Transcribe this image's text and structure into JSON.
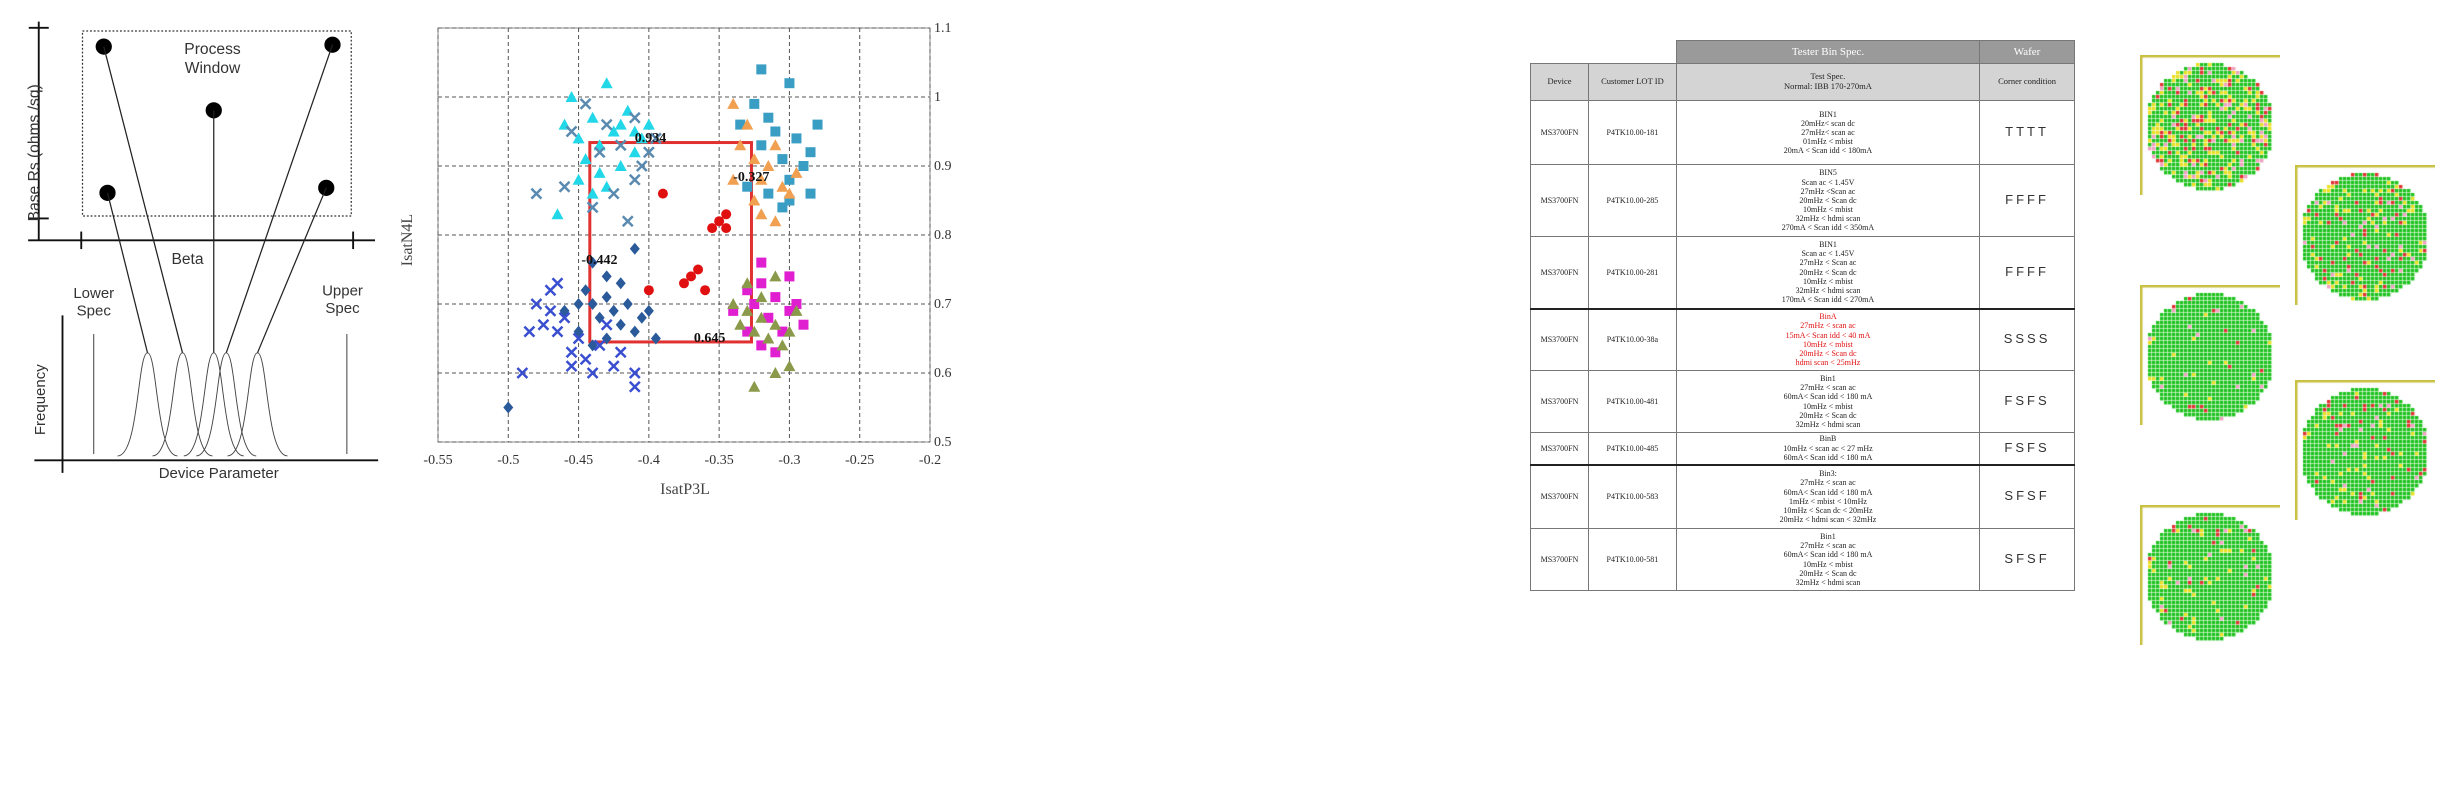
{
  "panel1": {
    "process_window": "Process Window",
    "ylabel": "Base Rs (ohms /sq)",
    "xlabel": "Beta",
    "lower_spec": "Lower Spec",
    "upper_spec": "Upper Spec",
    "freq_label": "Frequency",
    "device_param": "Device Parameter"
  },
  "chart_data": {
    "type": "scatter",
    "xlabel": "IsatP3L",
    "ylabel": "IsatN4L",
    "xlim": [
      -0.55,
      -0.2
    ],
    "ylim": [
      0.5,
      1.1
    ],
    "xticks": [
      "-0.55",
      "-0.5",
      "-0.45",
      "-0.4",
      "-0.35",
      "-0.3",
      "-0.25",
      "-0.2"
    ],
    "yticks": [
      "1.1",
      "1",
      "0.9",
      "0.8",
      "0.7",
      "0.6",
      "0.5"
    ],
    "grid": true,
    "box": {
      "x0": -0.442,
      "x1": -0.327,
      "y0": 0.645,
      "y1": 0.934,
      "color": "#e03030"
    },
    "annotations": [
      {
        "text": "0.934",
        "x": -0.41,
        "y": 0.935
      },
      {
        "text": "-0.327",
        "x": -0.34,
        "y": 0.878
      },
      {
        "text": "-0.442",
        "x": -0.448,
        "y": 0.758
      },
      {
        "text": "0.645",
        "x": -0.368,
        "y": 0.645
      }
    ],
    "series": [
      {
        "marker": "triangle",
        "color": "#22d8e8",
        "points": [
          [
            -0.46,
            0.96
          ],
          [
            -0.455,
            1.0
          ],
          [
            -0.45,
            0.94
          ],
          [
            -0.445,
            0.91
          ],
          [
            -0.44,
            0.97
          ],
          [
            -0.435,
            0.93
          ],
          [
            -0.43,
            1.02
          ],
          [
            -0.425,
            0.95
          ],
          [
            -0.42,
            0.9
          ],
          [
            -0.415,
            0.98
          ],
          [
            -0.41,
            0.92
          ],
          [
            -0.405,
            0.94
          ],
          [
            -0.4,
            0.96
          ],
          [
            -0.45,
            0.88
          ],
          [
            -0.44,
            0.86
          ],
          [
            -0.465,
            0.83
          ],
          [
            -0.435,
            0.89
          ],
          [
            -0.43,
            0.87
          ],
          [
            -0.42,
            0.96
          ],
          [
            -0.41,
            0.95
          ]
        ]
      },
      {
        "marker": "x",
        "color": "#5a8ab0",
        "points": [
          [
            -0.455,
            0.95
          ],
          [
            -0.445,
            0.99
          ],
          [
            -0.435,
            0.92
          ],
          [
            -0.43,
            0.96
          ],
          [
            -0.42,
            0.93
          ],
          [
            -0.41,
            0.97
          ],
          [
            -0.405,
            0.9
          ],
          [
            -0.4,
            0.92
          ],
          [
            -0.395,
            0.94
          ],
          [
            -0.425,
            0.86
          ],
          [
            -0.415,
            0.82
          ],
          [
            -0.44,
            0.84
          ],
          [
            -0.46,
            0.87
          ],
          [
            -0.48,
            0.86
          ],
          [
            -0.41,
            0.88
          ]
        ]
      },
      {
        "marker": "square",
        "color": "#3a9ec4",
        "points": [
          [
            -0.335,
            0.96
          ],
          [
            -0.325,
            0.99
          ],
          [
            -0.32,
            0.93
          ],
          [
            -0.315,
            0.97
          ],
          [
            -0.31,
            0.95
          ],
          [
            -0.305,
            0.91
          ],
          [
            -0.3,
            0.88
          ],
          [
            -0.295,
            0.94
          ],
          [
            -0.29,
            0.9
          ],
          [
            -0.285,
            0.92
          ],
          [
            -0.315,
            0.86
          ],
          [
            -0.305,
            0.84
          ],
          [
            -0.3,
            0.85
          ],
          [
            -0.33,
            0.87
          ],
          [
            -0.32,
            1.04
          ],
          [
            -0.3,
            1.02
          ],
          [
            -0.28,
            0.96
          ],
          [
            -0.285,
            0.86
          ]
        ]
      },
      {
        "marker": "triangle",
        "color": "#f0a050",
        "points": [
          [
            -0.34,
            0.99
          ],
          [
            -0.33,
            0.96
          ],
          [
            -0.325,
            0.91
          ],
          [
            -0.32,
            0.88
          ],
          [
            -0.315,
            0.9
          ],
          [
            -0.31,
            0.93
          ],
          [
            -0.305,
            0.87
          ],
          [
            -0.32,
            0.83
          ],
          [
            -0.31,
            0.82
          ],
          [
            -0.3,
            0.86
          ],
          [
            -0.295,
            0.89
          ],
          [
            -0.335,
            0.93
          ],
          [
            -0.34,
            0.88
          ],
          [
            -0.325,
            0.85
          ]
        ]
      },
      {
        "marker": "circle",
        "color": "#e01010",
        "points": [
          [
            -0.39,
            0.86
          ],
          [
            -0.375,
            0.73
          ],
          [
            -0.37,
            0.74
          ],
          [
            -0.365,
            0.75
          ],
          [
            -0.36,
            0.72
          ],
          [
            -0.355,
            0.81
          ],
          [
            -0.35,
            0.82
          ],
          [
            -0.345,
            0.81
          ],
          [
            -0.345,
            0.83
          ],
          [
            -0.4,
            0.72
          ]
        ]
      },
      {
        "marker": "diamond",
        "color": "#2a5a9a",
        "points": [
          [
            -0.445,
            0.72
          ],
          [
            -0.44,
            0.7
          ],
          [
            -0.435,
            0.68
          ],
          [
            -0.43,
            0.71
          ],
          [
            -0.425,
            0.69
          ],
          [
            -0.42,
            0.67
          ],
          [
            -0.415,
            0.7
          ],
          [
            -0.41,
            0.66
          ],
          [
            -0.405,
            0.68
          ],
          [
            -0.44,
            0.76
          ],
          [
            -0.43,
            0.74
          ],
          [
            -0.45,
            0.66
          ],
          [
            -0.44,
            0.64
          ],
          [
            -0.43,
            0.65
          ],
          [
            -0.42,
            0.73
          ],
          [
            -0.41,
            0.78
          ],
          [
            -0.4,
            0.69
          ],
          [
            -0.395,
            0.65
          ],
          [
            -0.45,
            0.7
          ],
          [
            -0.46,
            0.69
          ],
          [
            -0.5,
            0.55
          ]
        ]
      },
      {
        "marker": "x",
        "color": "#3a4ed0",
        "points": [
          [
            -0.48,
            0.7
          ],
          [
            -0.475,
            0.67
          ],
          [
            -0.47,
            0.69
          ],
          [
            -0.465,
            0.66
          ],
          [
            -0.46,
            0.68
          ],
          [
            -0.455,
            0.63
          ],
          [
            -0.45,
            0.65
          ],
          [
            -0.445,
            0.62
          ],
          [
            -0.44,
            0.6
          ],
          [
            -0.435,
            0.64
          ],
          [
            -0.43,
            0.67
          ],
          [
            -0.425,
            0.61
          ],
          [
            -0.42,
            0.63
          ],
          [
            -0.41,
            0.6
          ],
          [
            -0.41,
            0.58
          ],
          [
            -0.47,
            0.72
          ],
          [
            -0.465,
            0.73
          ],
          [
            -0.485,
            0.66
          ],
          [
            -0.49,
            0.6
          ],
          [
            -0.455,
            0.61
          ]
        ]
      },
      {
        "marker": "square",
        "color": "#e020d0",
        "points": [
          [
            -0.33,
            0.72
          ],
          [
            -0.325,
            0.7
          ],
          [
            -0.32,
            0.73
          ],
          [
            -0.315,
            0.68
          ],
          [
            -0.31,
            0.71
          ],
          [
            -0.305,
            0.66
          ],
          [
            -0.3,
            0.69
          ],
          [
            -0.33,
            0.66
          ],
          [
            -0.32,
            0.64
          ],
          [
            -0.31,
            0.63
          ],
          [
            -0.295,
            0.7
          ],
          [
            -0.29,
            0.67
          ],
          [
            -0.3,
            0.74
          ],
          [
            -0.34,
            0.69
          ],
          [
            -0.32,
            0.76
          ]
        ]
      },
      {
        "marker": "triangle",
        "color": "#8a9a4a",
        "points": [
          [
            -0.34,
            0.7
          ],
          [
            -0.335,
            0.67
          ],
          [
            -0.33,
            0.69
          ],
          [
            -0.325,
            0.66
          ],
          [
            -0.32,
            0.68
          ],
          [
            -0.315,
            0.65
          ],
          [
            -0.31,
            0.67
          ],
          [
            -0.305,
            0.64
          ],
          [
            -0.3,
            0.66
          ],
          [
            -0.295,
            0.69
          ],
          [
            -0.33,
            0.73
          ],
          [
            -0.32,
            0.71
          ],
          [
            -0.31,
            0.74
          ],
          [
            -0.3,
            0.61
          ],
          [
            -0.31,
            0.6
          ],
          [
            -0.325,
            0.58
          ]
        ]
      }
    ]
  },
  "table": {
    "group_spec": "Tester Bin Spec.",
    "group_wafer": "Wafer",
    "headers": [
      "Device",
      "Customer LOT ID",
      "Test Spec.\nNormal: IBB 170-270mA",
      "Corner condition"
    ],
    "rows": [
      {
        "device": "MS3700FN",
        "lot": "P4TK10.00-181",
        "spec": "BIN1\n20mHz< scan dc\n27mHz< scan ac\n01mHz < mbist\n20mA < Scan idd < 180mA",
        "cond": "TTTT",
        "red": false
      },
      {
        "device": "MS3700FN",
        "lot": "P4TK10.00-285",
        "spec": "BIN5\nScan ac < 1.45V\n27mHz <Scan ac\n20mHz < Scan dc\n10mHz < mbist\n32mHz < hdmi scan\n270mA < Scan idd < 350mA",
        "cond": "FFFF",
        "red": false
      },
      {
        "device": "MS3700FN",
        "lot": "P4TK10.00-281",
        "spec": "BIN1\nScan ac < 1.45V\n27mHz < Scan ac\n20mHz < Scan dc\n10mHz < mbist\n32mHz < hdmi scan\n170mA < Scan idd < 270mA",
        "cond": "FFFF",
        "red": false
      },
      {
        "device": "MS3700FN",
        "lot": "P4TK10.00-38a",
        "spec": "BinA\n27mHz < scan ac\n15mA< Scan idd < 40 mA\n10mHz < mbist\n20mHz < Scan dc\nhdmi scan < 25mHz",
        "cond": "SSSS",
        "red": true
      },
      {
        "device": "MS3700FN",
        "lot": "P4TK10.00-481",
        "spec": "Bin1\n27mHz < scan ac\n60mA< Scan idd < 180 mA\n10mHz < mbist\n20mHz < Scan dc\n32mHz < hdmi scan",
        "cond": "FSFS",
        "red": false
      },
      {
        "device": "MS3700FN",
        "lot": "P4TK10.00-485",
        "spec": "BinB\n10mHz < scan ac < 27 mHz\n60mA< Scan idd < 180 mA",
        "cond": "FSFS",
        "red": false
      },
      {
        "device": "MS3700FN",
        "lot": "P4TK10.00-583",
        "spec": "Bin3:\n27mHz < scan ac\n60mA< Scan idd < 180 mA\n1mHz < mbist < 10mHz\n10mHz < Scan dc < 20mHz\n20mHz < hdmi scan < 32mHz",
        "cond": "SFSF",
        "red": false
      },
      {
        "device": "MS3700FN",
        "lot": "P4TK10.00-581",
        "spec": "Bin1\n27mHz < scan ac\n60mA< Scan idd < 180 mA\n10mHz < mbist\n20mHz < Scan dc\n32mHz < hdmi scan",
        "cond": "SFSF",
        "red": false
      }
    ]
  },
  "wafer_colors": {
    "good": "#1ec21e",
    "fail_a": "#e8e020",
    "fail_b": "#e03030",
    "fail_c": "#f0a0c0",
    "frame": "#c8c040"
  }
}
